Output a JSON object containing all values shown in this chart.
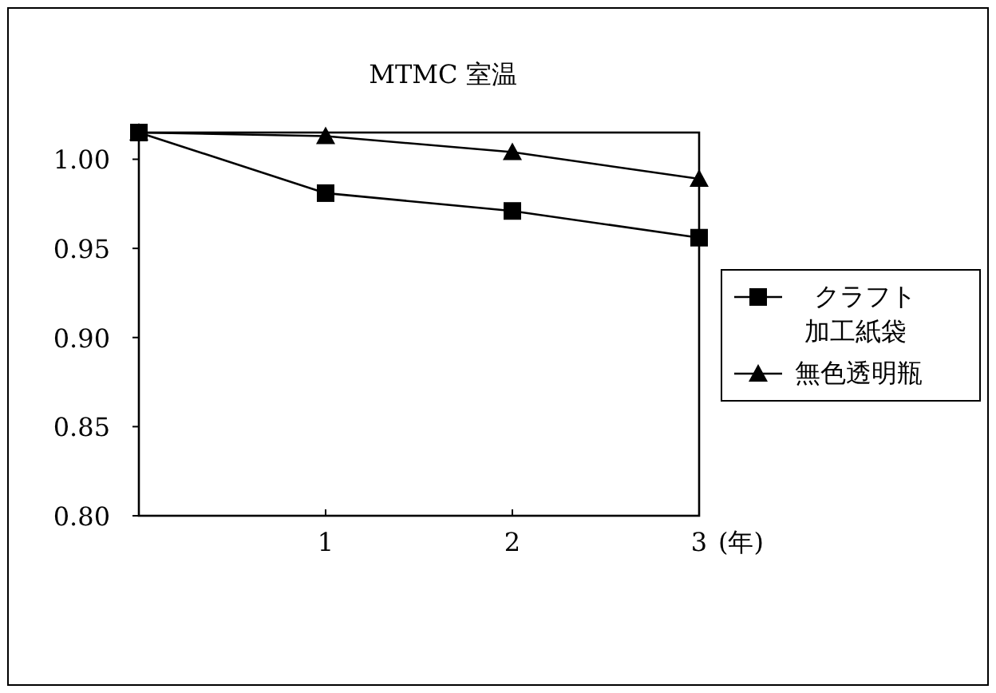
{
  "chart_data": {
    "type": "line",
    "title": "MTMC 室温",
    "xlabel": "(年)",
    "x": [
      0,
      1,
      2,
      3
    ],
    "xlim": [
      0,
      3
    ],
    "xticks": [
      {
        "value": 0,
        "label": null
      },
      1,
      2,
      3
    ],
    "ylim": [
      0.8,
      1.015
    ],
    "yticks": [
      {
        "value": 0.8,
        "label": "0.80"
      },
      0.85,
      {
        "value": 0.9,
        "label": "0.90"
      },
      0.95,
      {
        "value": 1.0,
        "label": "1.00"
      }
    ],
    "legend": "right",
    "grid": false,
    "series": [
      {
        "name": "クラフト加工紙袋",
        "color": "#000000",
        "marker": "square",
        "values": [
          1.015,
          0.981,
          0.971,
          0.956
        ]
      },
      {
        "name": "無色透明瓶",
        "color": "#000000",
        "marker": "triangle",
        "values": [
          1.015,
          1.013,
          1.004,
          0.989
        ]
      }
    ]
  }
}
